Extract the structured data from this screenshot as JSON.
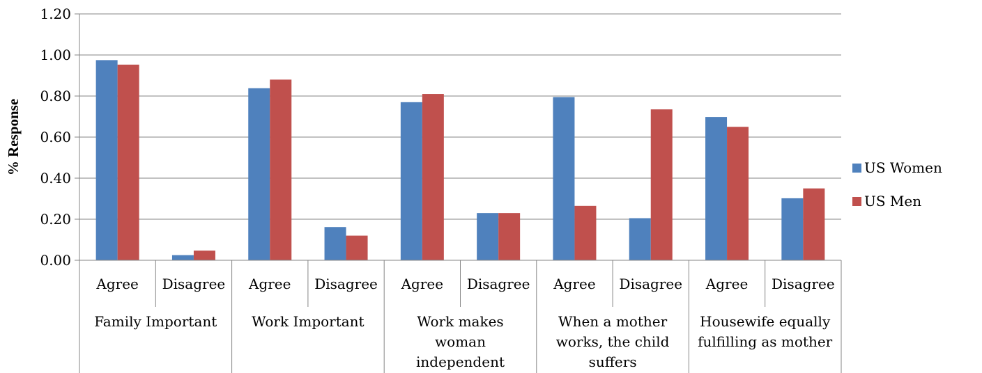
{
  "chart_data": {
    "type": "bar",
    "ylabel": "% Response",
    "xlabel": "",
    "title": "",
    "ylim": [
      0,
      1.2
    ],
    "yticks": [
      "0.00",
      "0.20",
      "0.40",
      "0.60",
      "0.80",
      "1.00",
      "1.20"
    ],
    "grid": "horizontal",
    "legend_position": "right",
    "groups": [
      {
        "label": [
          "Family Important"
        ],
        "categories": [
          "Agree",
          "Disagree"
        ]
      },
      {
        "label": [
          "Work Important"
        ],
        "categories": [
          "Agree",
          "Disagree"
        ]
      },
      {
        "label": [
          "Work makes",
          "woman",
          "independent"
        ],
        "categories": [
          "Agree",
          "Disagree"
        ]
      },
      {
        "label": [
          "When a mother",
          "works, the child",
          "suffers"
        ],
        "categories": [
          "Agree",
          "Disagree"
        ]
      },
      {
        "label": [
          "Housewife equally",
          "fulfilling as mother"
        ],
        "categories": [
          "Agree",
          "Disagree"
        ]
      }
    ],
    "series": [
      {
        "name": "US Women",
        "color": "#4f81bd",
        "values": [
          0.975,
          0.025,
          0.838,
          0.162,
          0.77,
          0.23,
          0.795,
          0.205,
          0.698,
          0.302
        ]
      },
      {
        "name": "US Men",
        "color": "#c0504d",
        "values": [
          0.953,
          0.047,
          0.88,
          0.12,
          0.81,
          0.23,
          0.265,
          0.735,
          0.65,
          0.35
        ]
      }
    ]
  }
}
